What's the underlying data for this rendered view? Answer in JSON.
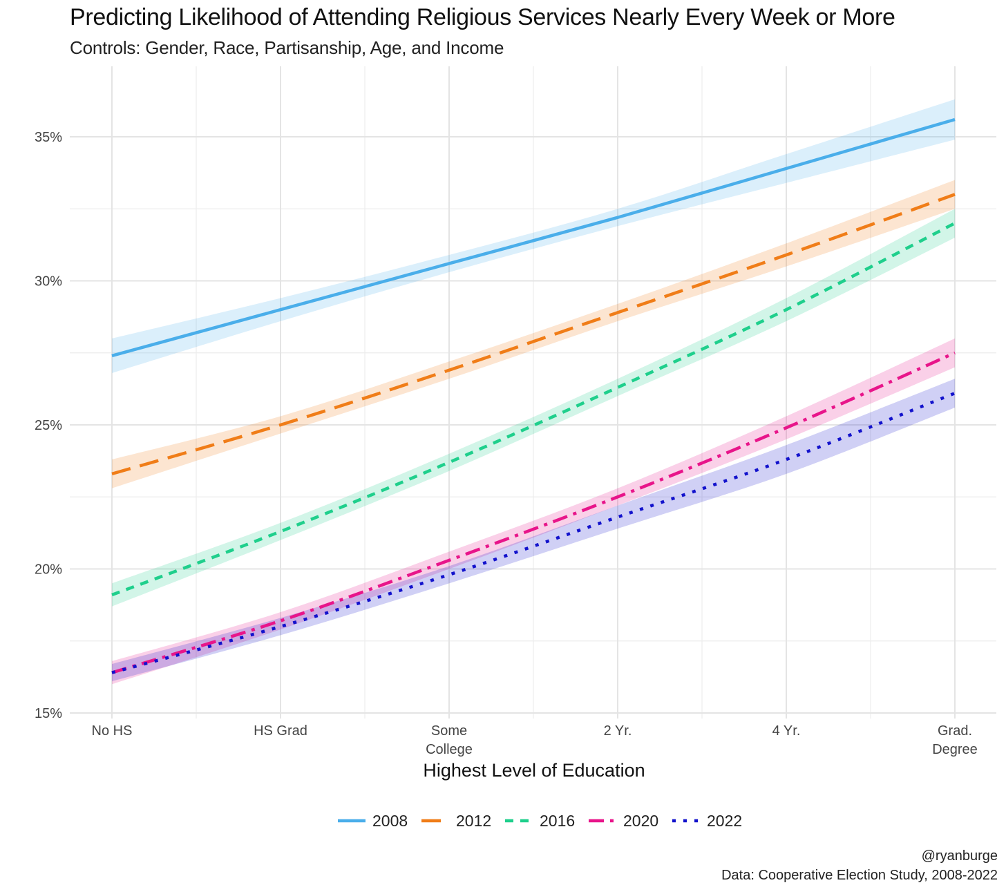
{
  "title": "Predicting Likelihood of Attending Religious Services Nearly Every Week or More",
  "subtitle": "Controls: Gender, Race, Partisanship, Age, and Income",
  "caption": {
    "handle": "@ryanburge",
    "source": "Data: Cooperative Election Study, 2008-2022"
  },
  "chart_data": {
    "type": "line",
    "xlabel": "Highest Level of Education",
    "ylabel": "",
    "categories": [
      [
        "No HS"
      ],
      [
        "HS Grad"
      ],
      [
        "Some",
        "College"
      ],
      [
        "2 Yr."
      ],
      [
        "4 Yr."
      ],
      [
        "Grad.",
        "Degree"
      ]
    ],
    "ylim": [
      15,
      37
    ],
    "yticks": [
      15,
      20,
      25,
      30,
      35
    ],
    "ytick_suffix": "%",
    "grid": true,
    "legend_position": "bottom",
    "series": [
      {
        "name": "2008",
        "color": "#4aaeea",
        "dash": "solid",
        "values": [
          27.4,
          29.0,
          30.6,
          32.2,
          33.9,
          35.6
        ],
        "lower": [
          26.8,
          28.6,
          30.3,
          31.9,
          33.4,
          34.9
        ],
        "upper": [
          28.0,
          29.4,
          30.9,
          32.5,
          34.4,
          36.3
        ]
      },
      {
        "name": "2012",
        "color": "#f07d18",
        "dash": "longdash",
        "values": [
          23.3,
          25.0,
          26.9,
          28.9,
          30.9,
          33.0
        ],
        "lower": [
          22.8,
          24.7,
          26.6,
          28.6,
          30.5,
          32.5
        ],
        "upper": [
          23.8,
          25.3,
          27.2,
          29.2,
          31.3,
          33.5
        ]
      },
      {
        "name": "2016",
        "color": "#1fcf8c",
        "dash": "dashed",
        "values": [
          19.1,
          21.3,
          23.7,
          26.3,
          29.0,
          32.0
        ],
        "lower": [
          18.7,
          21.0,
          23.4,
          26.0,
          28.6,
          31.5
        ],
        "upper": [
          19.5,
          21.6,
          24.0,
          26.6,
          29.4,
          32.5
        ]
      },
      {
        "name": "2020",
        "color": "#e8158a",
        "dash": "dotdash",
        "values": [
          16.4,
          18.2,
          20.3,
          22.5,
          24.9,
          27.5
        ],
        "lower": [
          16.0,
          17.9,
          20.0,
          22.2,
          24.5,
          27.0
        ],
        "upper": [
          16.8,
          18.5,
          20.6,
          22.8,
          25.3,
          28.0
        ]
      },
      {
        "name": "2022",
        "color": "#1212cc",
        "dash": "dotted",
        "values": [
          16.4,
          18.0,
          19.8,
          21.8,
          23.8,
          26.1
        ],
        "lower": [
          16.1,
          17.7,
          19.5,
          21.4,
          23.3,
          25.6
        ],
        "upper": [
          16.7,
          18.3,
          20.1,
          22.2,
          24.3,
          26.6
        ]
      }
    ]
  }
}
